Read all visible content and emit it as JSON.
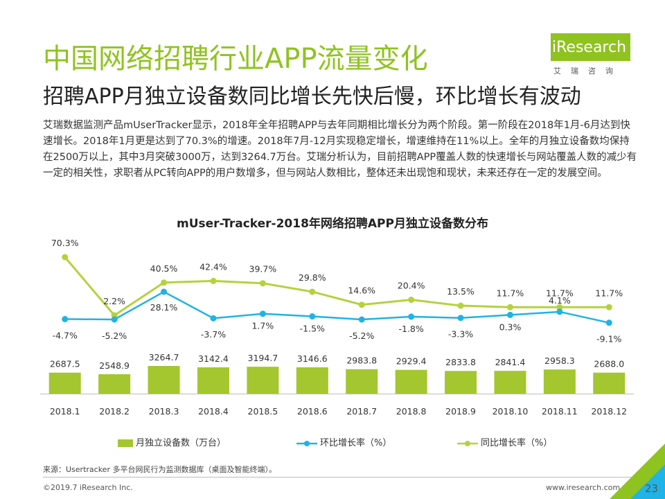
{
  "header": {
    "title": "中国网络招聘行业APP流量变化",
    "subtitle": "招聘APP月独立设备数同比增长先快后慢，环比增长有波动",
    "body": "艾瑞数据监测产品mUserTracker显示，2018年全年招聘APP与去年同期相比增长分为两个阶段。第一阶段在2018年1月-6月达到快速增长。2018年1月更是达到了70.3%的增速。2018年7月-12月实现稳定增长，增速维持在11%以上。全年的月独立设备数均保持在2500万以上，其中3月突破3000万，达到3264.7万台。艾瑞分析认为，目前招聘APP覆盖人数的快速增长与网站覆盖人数的减少有一定的相关性，求职者从PC转向APP的用户数增多，但与网站人数相比，整体还未出现饱和现状，未来还存在一定的发展空间。"
  },
  "logo": {
    "text": "iResearch",
    "sub": "艾瑞咨询"
  },
  "colors": {
    "bar": "#a4c62f",
    "mom": "#1fb3e6",
    "yoy": "#b4d23c",
    "accent": "#8fc31f",
    "corner_green": "#8fc31f",
    "corner_cyan": "#1fb3e6"
  },
  "chart_data": {
    "type": "bar",
    "title": "mUser-Tracker-2018年网络招聘APP月独立设备数分布",
    "categories": [
      "2018.1",
      "2018.2",
      "2018.3",
      "2018.4",
      "2018.5",
      "2018.6",
      "2018.7",
      "2018.8",
      "2018.9",
      "2018.10",
      "2018.11",
      "2018.12"
    ],
    "series": [
      {
        "name": "月独立设备数（万台）",
        "type": "bar",
        "values": [
          2687.5,
          2548.9,
          3264.7,
          3142.4,
          3194.7,
          3146.6,
          2983.8,
          2929.4,
          2833.8,
          2841.4,
          2958.3,
          2688.0
        ],
        "labels": [
          "2687.5",
          "2548.9",
          "3264.7",
          "3142.4",
          "3194.7",
          "3146.6",
          "2983.8",
          "2929.4",
          "2833.8",
          "2841.4",
          "2958.3",
          "2688.0"
        ]
      },
      {
        "name": "环比增长率（%）",
        "type": "line",
        "values": [
          -4.7,
          -5.2,
          28.1,
          -3.7,
          1.7,
          -1.5,
          -5.2,
          -1.8,
          -3.3,
          0.3,
          4.1,
          -9.1
        ],
        "labels": [
          "-4.7%",
          "-5.2%",
          "28.1%",
          "-3.7%",
          "1.7%",
          "-1.5%",
          "-5.2%",
          "-1.8%",
          "-3.3%",
          "0.3%",
          "4.1%",
          "-9.1%"
        ]
      },
      {
        "name": "同比增长率（%）",
        "type": "line",
        "values": [
          70.3,
          2.2,
          40.5,
          42.4,
          39.7,
          29.8,
          14.6,
          20.4,
          13.5,
          11.7,
          11.7,
          11.7
        ],
        "labels": [
          "70.3%",
          "2.2%",
          "40.5%",
          "42.4%",
          "39.7%",
          "29.8%",
          "14.6%",
          "20.4%",
          "13.5%",
          "11.7%",
          "11.7%",
          "11.7%"
        ]
      }
    ],
    "legend": "bottom",
    "grid": false
  },
  "footer": {
    "source": "来源：Usertracker 多平台网民行为监测数据库（桌面及智能终端）。",
    "copyright": "©2019.7 iResearch Inc.",
    "website": "www.iresearch.com.cn",
    "page": "23"
  }
}
